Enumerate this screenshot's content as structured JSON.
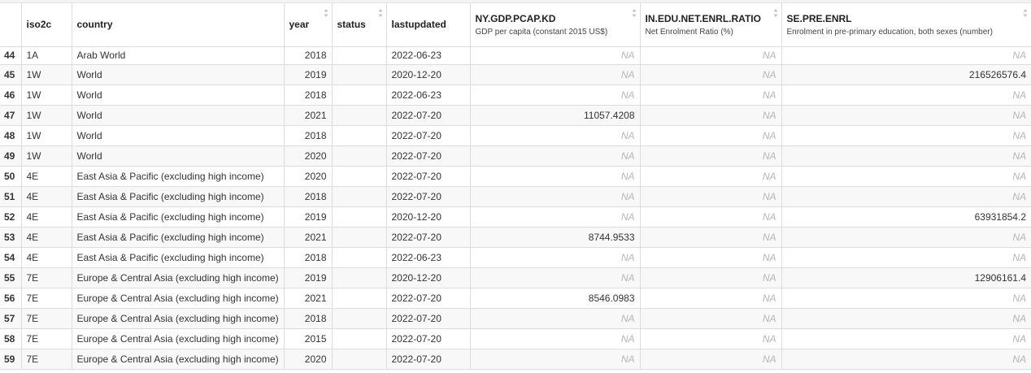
{
  "columns": [
    {
      "name": "iso2c",
      "label": ""
    },
    {
      "name": "country",
      "label": ""
    },
    {
      "name": "year",
      "label": ""
    },
    {
      "name": "status",
      "label": ""
    },
    {
      "name": "lastupdated",
      "label": ""
    },
    {
      "name": "NY.GDP.PCAP.KD",
      "label": "GDP per capita (constant 2015 US$)"
    },
    {
      "name": "IN.EDU.NET.ENRL.RATIO",
      "label": "Net Enrolment Ratio (%)"
    },
    {
      "name": "SE.PRE.ENRL",
      "label": "Enrolment in pre-primary education, both sexes (number)"
    }
  ],
  "na_text": "NA",
  "rows": [
    {
      "n": "44",
      "iso2c": "1A",
      "country": "Arab World",
      "year": "2018",
      "status": "",
      "lastupdated": "2022-06-23",
      "gdp": "NA",
      "enrl": "NA",
      "pre": "NA"
    },
    {
      "n": "45",
      "iso2c": "1W",
      "country": "World",
      "year": "2019",
      "status": "",
      "lastupdated": "2020-12-20",
      "gdp": "NA",
      "enrl": "NA",
      "pre": "216526576.4"
    },
    {
      "n": "46",
      "iso2c": "1W",
      "country": "World",
      "year": "2018",
      "status": "",
      "lastupdated": "2022-06-23",
      "gdp": "NA",
      "enrl": "NA",
      "pre": "NA"
    },
    {
      "n": "47",
      "iso2c": "1W",
      "country": "World",
      "year": "2021",
      "status": "",
      "lastupdated": "2022-07-20",
      "gdp": "11057.4208",
      "enrl": "NA",
      "pre": "NA"
    },
    {
      "n": "48",
      "iso2c": "1W",
      "country": "World",
      "year": "2018",
      "status": "",
      "lastupdated": "2022-07-20",
      "gdp": "NA",
      "enrl": "NA",
      "pre": "NA"
    },
    {
      "n": "49",
      "iso2c": "1W",
      "country": "World",
      "year": "2020",
      "status": "",
      "lastupdated": "2022-07-20",
      "gdp": "NA",
      "enrl": "NA",
      "pre": "NA"
    },
    {
      "n": "50",
      "iso2c": "4E",
      "country": "East Asia & Pacific (excluding high income)",
      "year": "2020",
      "status": "",
      "lastupdated": "2022-07-20",
      "gdp": "NA",
      "enrl": "NA",
      "pre": "NA"
    },
    {
      "n": "51",
      "iso2c": "4E",
      "country": "East Asia & Pacific (excluding high income)",
      "year": "2018",
      "status": "",
      "lastupdated": "2022-07-20",
      "gdp": "NA",
      "enrl": "NA",
      "pre": "NA"
    },
    {
      "n": "52",
      "iso2c": "4E",
      "country": "East Asia & Pacific (excluding high income)",
      "year": "2019",
      "status": "",
      "lastupdated": "2020-12-20",
      "gdp": "NA",
      "enrl": "NA",
      "pre": "63931854.2"
    },
    {
      "n": "53",
      "iso2c": "4E",
      "country": "East Asia & Pacific (excluding high income)",
      "year": "2021",
      "status": "",
      "lastupdated": "2022-07-20",
      "gdp": "8744.9533",
      "enrl": "NA",
      "pre": "NA"
    },
    {
      "n": "54",
      "iso2c": "4E",
      "country": "East Asia & Pacific (excluding high income)",
      "year": "2018",
      "status": "",
      "lastupdated": "2022-06-23",
      "gdp": "NA",
      "enrl": "NA",
      "pre": "NA"
    },
    {
      "n": "55",
      "iso2c": "7E",
      "country": "Europe & Central Asia (excluding high income)",
      "year": "2019",
      "status": "",
      "lastupdated": "2020-12-20",
      "gdp": "NA",
      "enrl": "NA",
      "pre": "12906161.4"
    },
    {
      "n": "56",
      "iso2c": "7E",
      "country": "Europe & Central Asia (excluding high income)",
      "year": "2021",
      "status": "",
      "lastupdated": "2022-07-20",
      "gdp": "8546.0983",
      "enrl": "NA",
      "pre": "NA"
    },
    {
      "n": "57",
      "iso2c": "7E",
      "country": "Europe & Central Asia (excluding high income)",
      "year": "2018",
      "status": "",
      "lastupdated": "2022-07-20",
      "gdp": "NA",
      "enrl": "NA",
      "pre": "NA"
    },
    {
      "n": "58",
      "iso2c": "7E",
      "country": "Europe & Central Asia (excluding high income)",
      "year": "2015",
      "status": "",
      "lastupdated": "2022-07-20",
      "gdp": "NA",
      "enrl": "NA",
      "pre": "NA"
    },
    {
      "n": "59",
      "iso2c": "7E",
      "country": "Europe & Central Asia (excluding high income)",
      "year": "2020",
      "status": "",
      "lastupdated": "2022-07-20",
      "gdp": "NA",
      "enrl": "NA",
      "pre": "NA"
    }
  ],
  "icons": {
    "sort": "sort-arrows-icon"
  },
  "colors": {
    "na": "#b5b5b5",
    "border": "#dcdcdc",
    "stripe": "#f8f8f8"
  }
}
